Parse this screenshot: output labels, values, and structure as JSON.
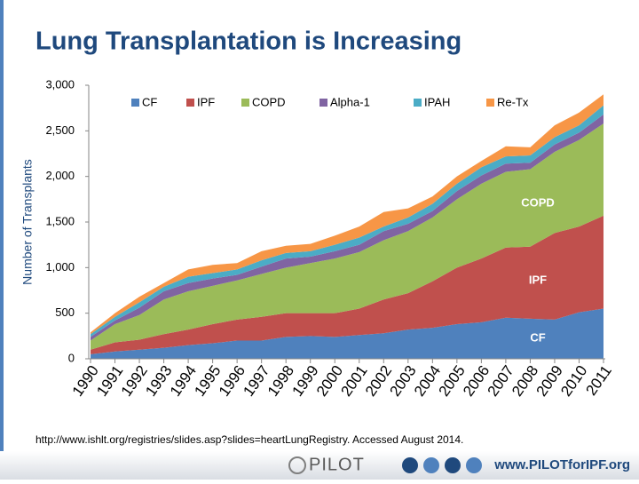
{
  "chart_data": {
    "type": "stacked_area",
    "title": "Lung Transplantation is Increasing",
    "y_label": "Number of Transplants",
    "categories": [
      "1990",
      "1991",
      "1992",
      "1993",
      "1994",
      "1995",
      "1996",
      "1997",
      "1998",
      "1999",
      "2000",
      "2001",
      "2002",
      "2003",
      "2004",
      "2005",
      "2006",
      "2007",
      "2008",
      "2009",
      "2010",
      "2011"
    ],
    "series": [
      {
        "name": "CF",
        "color": "#4f81bd",
        "values": [
          50,
          80,
          100,
          120,
          150,
          170,
          200,
          200,
          240,
          250,
          240,
          260,
          280,
          320,
          340,
          380,
          400,
          450,
          440,
          430,
          510,
          550
        ]
      },
      {
        "name": "IPF",
        "color": "#c0504d",
        "values": [
          50,
          100,
          110,
          150,
          170,
          210,
          230,
          260,
          260,
          250,
          260,
          290,
          370,
          400,
          510,
          620,
          700,
          770,
          790,
          950,
          940,
          1020
        ]
      },
      {
        "name": "COPD",
        "color": "#9bbb59",
        "values": [
          100,
          200,
          270,
          380,
          420,
          420,
          430,
          470,
          500,
          550,
          600,
          620,
          650,
          680,
          700,
          750,
          820,
          830,
          850,
          890,
          950,
          1010
        ]
      },
      {
        "name": "Alpha-1",
        "color": "#8064a2",
        "values": [
          40,
          40,
          80,
          90,
          90,
          80,
          60,
          80,
          100,
          70,
          80,
          80,
          100,
          80,
          70,
          90,
          90,
          90,
          70,
          80,
          80,
          100
        ]
      },
      {
        "name": "IPAH",
        "color": "#4bacc6",
        "values": [
          30,
          40,
          60,
          50,
          70,
          60,
          60,
          70,
          60,
          60,
          70,
          80,
          50,
          70,
          80,
          80,
          90,
          80,
          80,
          80,
          80,
          100
        ]
      },
      {
        "name": "Re-Tx",
        "color": "#f79646",
        "values": [
          20,
          40,
          60,
          40,
          80,
          90,
          70,
          100,
          80,
          80,
          100,
          120,
          160,
          100,
          80,
          80,
          70,
          110,
          90,
          130,
          140,
          120
        ]
      }
    ],
    "ylim": [
      0,
      3000
    ],
    "yticks": [
      0,
      500,
      {
        "value": 1000,
        "label": "1,000"
      },
      {
        "value": 1500,
        "label": "1,500"
      },
      {
        "value": 2000,
        "label": "2,000"
      },
      {
        "value": 2500,
        "label": "2,500"
      },
      {
        "value": 3000,
        "label": "3,000"
      }
    ],
    "legend": "top",
    "annotations": [
      "COPD",
      "IPF",
      "CF"
    ],
    "source": "http://www.ishlt.org/registries/slides.asp?slides=heartLungRegistry. Accessed August 2014."
  },
  "footer": {
    "logo": "PILOT",
    "url": "www.PILOTforIPF.org"
  }
}
